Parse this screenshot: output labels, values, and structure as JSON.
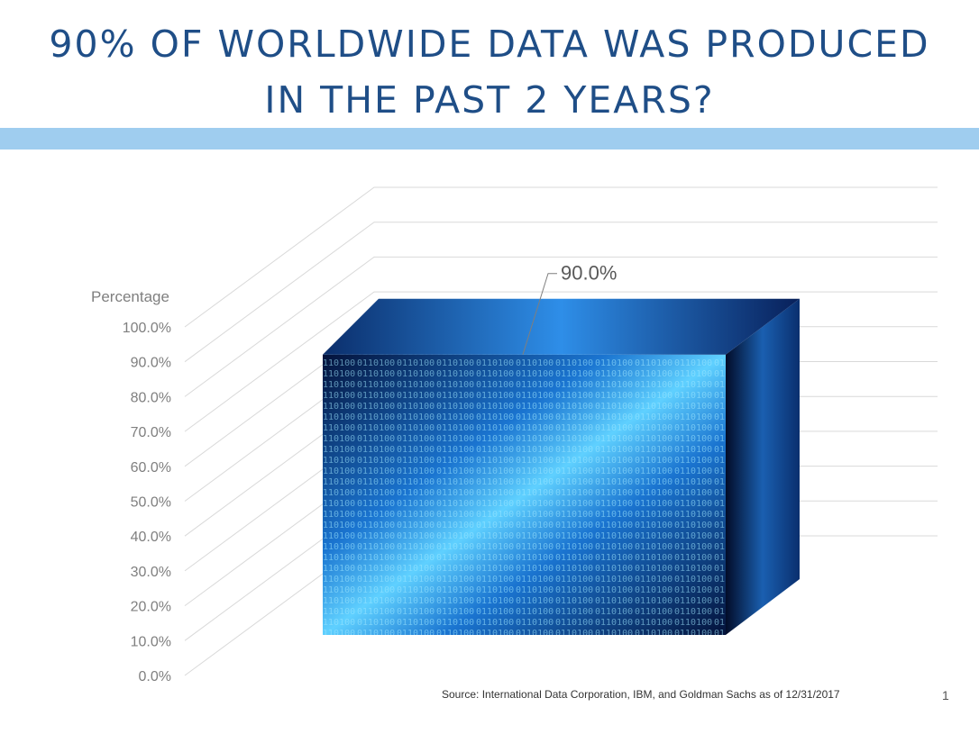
{
  "slide": {
    "title_line1": "90% OF WORLDWIDE DATA WAS PRODUCED",
    "title_line2": "IN THE PAST 2 YEARS?",
    "source": "Source:  International Data Corporation, IBM, and Goldman Sachs as of 12/31/2017",
    "page_number": "1"
  },
  "colors": {
    "title": "#1f4e87",
    "band": "#9fcdef",
    "gridline": "#d9d9d9",
    "tick_label": "#7f7f7f",
    "bar_light": "#5fd0ff",
    "bar_mid": "#1a74d0",
    "bar_dark": "#04123a"
  },
  "chart_data": {
    "type": "bar",
    "style": "3d",
    "ylabel": "Percentage",
    "ylim": [
      0,
      100
    ],
    "yticks": [
      "0.0%",
      "10.0%",
      "20.0%",
      "30.0%",
      "40.0%",
      "50.0%",
      "60.0%",
      "70.0%",
      "80.0%",
      "90.0%",
      "100.0%"
    ],
    "tick_values": [
      0,
      10,
      20,
      30,
      40,
      50,
      60,
      70,
      80,
      90,
      100
    ],
    "categories": [
      ""
    ],
    "values": [
      90.0
    ],
    "data_labels": [
      "90.0%"
    ],
    "grid": true,
    "legend": "none",
    "bar_fill": "binary-code-image"
  }
}
